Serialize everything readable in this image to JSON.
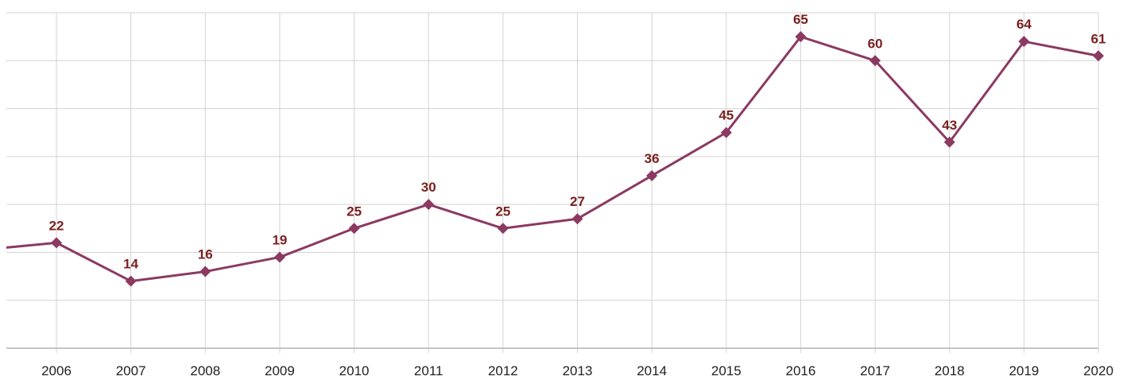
{
  "chart_data": {
    "type": "line",
    "title": "",
    "xlabel": "",
    "ylabel": "",
    "categories": [
      "2006",
      "2007",
      "2008",
      "2009",
      "2010",
      "2011",
      "2012",
      "2013",
      "2014",
      "2015",
      "2016",
      "2017",
      "2018",
      "2019",
      "2020"
    ],
    "series": [
      {
        "values": [
          22,
          14,
          16,
          19,
          25,
          30,
          25,
          27,
          36,
          45,
          65,
          60,
          43,
          64,
          61
        ],
        "leading_value": 21
      }
    ],
    "ylim": [
      0,
      70
    ],
    "y_grid_step": 10,
    "grid": true,
    "legend": "none",
    "colors": {
      "series": "#8b3a62",
      "marker": "#8b3a62",
      "data_label": "#7a1f1f",
      "grid": "#d3d3d3",
      "axis": "#c4c4c4"
    },
    "marker": "diamond",
    "data_labels": true
  }
}
